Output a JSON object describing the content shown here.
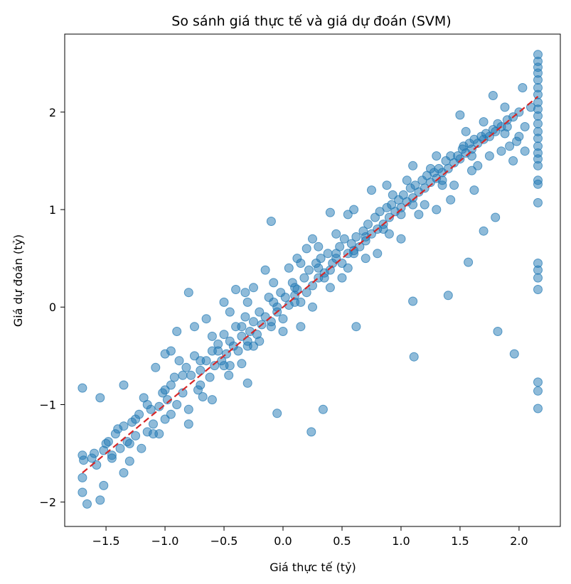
{
  "chart_data": {
    "type": "scatter",
    "title": "So sánh giá thực tế và giá dự đoán (SVM)",
    "xlabel": "Giá thực tế (tỷ)",
    "ylabel": "Giá dự đoán (tỷ)",
    "xlim": [
      -1.85,
      2.35
    ],
    "ylim": [
      -2.25,
      2.8
    ],
    "xticks": [
      -1.5,
      -1.0,
      -0.5,
      0.0,
      0.5,
      1.0,
      1.5,
      2.0
    ],
    "xtick_labels": [
      "−1.5",
      "−1.0",
      "−0.5",
      "0.0",
      "0.5",
      "1.0",
      "1.5",
      "2.0"
    ],
    "yticks": [
      -2,
      -1,
      0,
      1,
      2
    ],
    "ytick_labels": [
      "−2",
      "−1",
      "0",
      "1",
      "2"
    ],
    "grid": false,
    "point_color": "#1f77b4",
    "point_opacity": 0.5,
    "reference_line": {
      "style": "dashed",
      "color": "#d62728",
      "from": [
        -1.7,
        -1.7
      ],
      "to": [
        2.16,
        2.16
      ]
    },
    "points": [
      [
        -1.7,
        -0.83
      ],
      [
        -1.7,
        -1.52
      ],
      [
        -1.69,
        -1.57
      ],
      [
        -1.7,
        -1.75
      ],
      [
        -1.7,
        -1.9
      ],
      [
        -1.66,
        -2.02
      ],
      [
        -1.55,
        -1.98
      ],
      [
        -1.52,
        -1.83
      ],
      [
        -1.55,
        -0.93
      ],
      [
        -1.62,
        -1.55
      ],
      [
        -1.58,
        -1.62
      ],
      [
        -1.52,
        -1.47
      ],
      [
        -1.48,
        -1.38
      ],
      [
        -1.45,
        -1.52
      ],
      [
        -1.42,
        -1.3
      ],
      [
        -1.38,
        -1.45
      ],
      [
        -1.35,
        -1.22
      ],
      [
        -1.35,
        -0.8
      ],
      [
        -1.32,
        -1.38
      ],
      [
        -1.3,
        -1.58
      ],
      [
        -1.28,
        -1.18
      ],
      [
        -1.25,
        -1.32
      ],
      [
        -1.22,
        -1.1
      ],
      [
        -1.2,
        -1.45
      ],
      [
        -1.18,
        -0.93
      ],
      [
        -1.15,
        -1.28
      ],
      [
        -1.12,
        -1.05
      ],
      [
        -1.1,
        -1.2
      ],
      [
        -1.08,
        -0.62
      ],
      [
        -1.05,
        -1.02
      ],
      [
        -1.02,
        -0.88
      ],
      [
        -1.0,
        -0.48
      ],
      [
        -1.0,
        -1.15
      ],
      [
        -0.98,
        -0.95
      ],
      [
        -0.95,
        -0.8
      ],
      [
        -0.92,
        -0.72
      ],
      [
        -0.9,
        -1.0
      ],
      [
        -0.88,
        -0.55
      ],
      [
        -0.85,
        -0.88
      ],
      [
        -0.82,
        -0.62
      ],
      [
        -0.8,
        -1.05
      ],
      [
        -0.78,
        -0.7
      ],
      [
        -0.75,
        -0.5
      ],
      [
        -0.72,
        -0.85
      ],
      [
        -0.7,
        -0.65
      ],
      [
        -0.68,
        -0.92
      ],
      [
        -0.65,
        -0.55
      ],
      [
        -0.62,
        -0.72
      ],
      [
        -0.6,
        -0.45
      ],
      [
        -0.58,
        -0.6
      ],
      [
        -0.55,
        -0.38
      ],
      [
        -0.52,
        -0.55
      ],
      [
        -0.5,
        -0.28
      ],
      [
        -0.48,
        -0.48
      ],
      [
        -0.46,
        -0.7
      ],
      [
        -0.45,
        -0.35
      ],
      [
        -0.42,
        -0.4
      ],
      [
        -0.4,
        -0.2
      ],
      [
        -0.38,
        -0.45
      ],
      [
        -0.35,
        -0.3
      ],
      [
        -0.32,
        -0.1
      ],
      [
        -0.3,
        -0.35
      ],
      [
        -0.28,
        -0.25
      ],
      [
        -0.3,
        -0.78
      ],
      [
        -0.25,
        -0.15
      ],
      [
        -0.22,
        -0.28
      ],
      [
        -0.2,
        -0.05
      ],
      [
        -0.18,
        -0.18
      ],
      [
        -0.15,
        -0.1
      ],
      [
        -0.12,
        0.1
      ],
      [
        -0.1,
        -0.2
      ],
      [
        -0.08,
        0.05
      ],
      [
        -0.05,
        -0.05
      ],
      [
        -0.02,
        0.15
      ],
      [
        0.0,
        -0.12
      ],
      [
        0.02,
        0.1
      ],
      [
        0.05,
        0.02
      ],
      [
        0.08,
        0.25
      ],
      [
        0.1,
        0.05
      ],
      [
        0.12,
        0.18
      ],
      [
        0.15,
        0.05
      ],
      [
        0.18,
        0.3
      ],
      [
        0.2,
        0.15
      ],
      [
        0.22,
        0.38
      ],
      [
        0.25,
        0.22
      ],
      [
        0.28,
        0.45
      ],
      [
        0.3,
        0.3
      ],
      [
        0.32,
        0.5
      ],
      [
        0.35,
        0.35
      ],
      [
        0.38,
        0.55
      ],
      [
        0.4,
        0.38
      ],
      [
        0.42,
        0.45
      ],
      [
        0.45,
        0.5
      ],
      [
        0.48,
        0.62
      ],
      [
        0.5,
        0.45
      ],
      [
        0.52,
        0.7
      ],
      [
        0.55,
        0.55
      ],
      [
        0.58,
        0.65
      ],
      [
        0.6,
        0.58
      ],
      [
        0.62,
        0.72
      ],
      [
        0.65,
        0.62
      ],
      [
        0.68,
        0.78
      ],
      [
        0.7,
        0.68
      ],
      [
        0.72,
        0.85
      ],
      [
        0.75,
        0.75
      ],
      [
        0.78,
        0.92
      ],
      [
        0.8,
        0.8
      ],
      [
        0.82,
        0.98
      ],
      [
        0.85,
        0.85
      ],
      [
        0.88,
        1.02
      ],
      [
        0.9,
        0.92
      ],
      [
        0.92,
        1.05
      ],
      [
        0.95,
        0.98
      ],
      [
        0.98,
        1.1
      ],
      [
        1.0,
        1.02
      ],
      [
        1.02,
        1.15
      ],
      [
        1.05,
        1.08
      ],
      [
        1.08,
        1.22
      ],
      [
        1.1,
        1.12
      ],
      [
        1.12,
        1.25
      ],
      [
        1.15,
        1.18
      ],
      [
        1.18,
        1.3
      ],
      [
        1.2,
        1.22
      ],
      [
        1.22,
        1.35
      ],
      [
        1.25,
        1.28
      ],
      [
        1.28,
        1.38
      ],
      [
        1.3,
        1.32
      ],
      [
        1.32,
        1.42
      ],
      [
        1.35,
        1.38
      ],
      [
        1.38,
        1.5
      ],
      [
        1.4,
        1.42
      ],
      [
        1.42,
        1.55
      ],
      [
        1.45,
        1.48
      ],
      [
        1.48,
        1.55
      ],
      [
        1.5,
        1.52
      ],
      [
        1.52,
        1.62
      ],
      [
        1.55,
        1.58
      ],
      [
        1.58,
        1.68
      ],
      [
        1.6,
        1.62
      ],
      [
        1.62,
        1.72
      ],
      [
        1.65,
        1.68
      ],
      [
        1.68,
        1.75
      ],
      [
        1.7,
        1.72
      ],
      [
        1.72,
        1.78
      ],
      [
        1.75,
        1.75
      ],
      [
        1.78,
        1.82
      ],
      [
        1.8,
        1.8
      ],
      [
        1.82,
        1.88
      ],
      [
        1.85,
        1.85
      ],
      [
        1.88,
        1.78
      ],
      [
        1.9,
        1.92
      ],
      [
        1.92,
        1.65
      ],
      [
        1.95,
        1.95
      ],
      [
        1.98,
        1.7
      ],
      [
        2.0,
        2.0
      ],
      [
        2.05,
        1.85
      ],
      [
        2.1,
        2.05
      ],
      [
        1.78,
        2.17
      ],
      [
        1.5,
        1.97
      ],
      [
        1.53,
        1.65
      ],
      [
        1.3,
        1.55
      ],
      [
        1.1,
        1.45
      ],
      [
        0.88,
        1.25
      ],
      [
        0.75,
        1.2
      ],
      [
        0.6,
        1.0
      ],
      [
        0.4,
        0.97
      ],
      [
        0.25,
        0.7
      ],
      [
        0.2,
        0.6
      ],
      [
        0.12,
        0.5
      ],
      [
        -0.1,
        0.88
      ],
      [
        -0.08,
        0.25
      ],
      [
        -0.25,
        0.2
      ],
      [
        -0.3,
        0.05
      ],
      [
        -0.4,
        0.18
      ],
      [
        -0.5,
        0.05
      ],
      [
        -0.65,
        -0.12
      ],
      [
        -0.8,
        0.15
      ],
      [
        -0.9,
        -0.25
      ],
      [
        -0.95,
        -0.45
      ],
      [
        -0.75,
        -0.2
      ],
      [
        -0.6,
        -0.3
      ],
      [
        -0.15,
        0.38
      ],
      [
        0.05,
        0.4
      ],
      [
        0.15,
        0.45
      ],
      [
        0.55,
        0.4
      ],
      [
        0.8,
        0.55
      ],
      [
        1.0,
        0.7
      ],
      [
        1.15,
        0.95
      ],
      [
        1.3,
        1.0
      ],
      [
        1.42,
        1.1
      ],
      [
        1.62,
        1.2
      ],
      [
        1.8,
        0.92
      ],
      [
        1.7,
        0.78
      ],
      [
        1.57,
        0.46
      ],
      [
        1.4,
        0.12
      ],
      [
        1.82,
        -0.25
      ],
      [
        1.96,
        -0.48
      ],
      [
        1.11,
        -0.51
      ],
      [
        1.1,
        0.06
      ],
      [
        0.62,
        -0.2
      ],
      [
        0.34,
        -1.05
      ],
      [
        0.24,
        -1.28
      ],
      [
        -0.05,
        -1.09
      ],
      [
        0.15,
        -0.2
      ],
      [
        -0.25,
        -0.4
      ],
      [
        -1.35,
        -1.7
      ],
      [
        -1.05,
        -1.3
      ],
      [
        -0.8,
        -1.2
      ],
      [
        -0.6,
        -0.95
      ],
      [
        -0.45,
        -0.6
      ],
      [
        -0.35,
        -0.58
      ],
      [
        -0.2,
        -0.35
      ],
      [
        0.0,
        -0.25
      ],
      [
        0.25,
        0.0
      ],
      [
        0.4,
        0.2
      ],
      [
        0.5,
        0.3
      ],
      [
        0.7,
        0.5
      ],
      [
        0.9,
        0.75
      ],
      [
        1.2,
        1.05
      ],
      [
        1.45,
        1.25
      ],
      [
        1.65,
        1.45
      ],
      [
        1.85,
        1.6
      ],
      [
        2.0,
        1.75
      ],
      [
        2.16,
        2.59
      ],
      [
        2.16,
        2.52
      ],
      [
        2.16,
        2.46
      ],
      [
        2.16,
        2.4
      ],
      [
        2.16,
        2.33
      ],
      [
        2.16,
        2.25
      ],
      [
        2.16,
        2.18
      ],
      [
        2.16,
        2.1
      ],
      [
        2.16,
        2.03
      ],
      [
        2.16,
        1.96
      ],
      [
        2.16,
        1.88
      ],
      [
        2.16,
        1.8
      ],
      [
        2.16,
        1.73
      ],
      [
        2.16,
        1.65
      ],
      [
        2.16,
        1.58
      ],
      [
        2.16,
        1.52
      ],
      [
        2.16,
        1.45
      ],
      [
        2.16,
        1.3
      ],
      [
        2.16,
        1.26
      ],
      [
        2.16,
        1.07
      ],
      [
        2.16,
        0.45
      ],
      [
        2.16,
        0.38
      ],
      [
        2.16,
        0.3
      ],
      [
        2.16,
        0.18
      ],
      [
        2.16,
        -0.77
      ],
      [
        2.16,
        -0.86
      ],
      [
        2.16,
        -1.04
      ],
      [
        2.05,
        1.6
      ],
      [
        1.95,
        1.5
      ],
      [
        1.75,
        1.55
      ],
      [
        1.6,
        1.4
      ],
      [
        1.35,
        1.25
      ],
      [
        1.0,
        0.95
      ],
      [
        0.7,
        0.72
      ],
      [
        0.45,
        0.55
      ],
      [
        0.3,
        0.4
      ],
      [
        0.1,
        0.2
      ],
      [
        -0.05,
        0.0
      ],
      [
        -0.35,
        -0.2
      ],
      [
        -0.55,
        -0.45
      ],
      [
        -0.7,
        -0.55
      ],
      [
        -0.85,
        -0.7
      ],
      [
        -1.0,
        -0.85
      ],
      [
        -1.15,
        -1.0
      ],
      [
        -1.25,
        -1.15
      ],
      [
        -1.4,
        -1.25
      ],
      [
        -1.5,
        -1.4
      ],
      [
        -1.6,
        -1.5
      ],
      [
        -1.45,
        -1.55
      ],
      [
        -1.3,
        -1.4
      ],
      [
        -1.1,
        -1.3
      ],
      [
        -0.95,
        -1.1
      ],
      [
        -0.7,
        -0.8
      ],
      [
        -0.5,
        -0.6
      ],
      [
        -0.3,
        -0.4
      ],
      [
        -0.1,
        -0.15
      ],
      [
        0.1,
        0.12
      ],
      [
        0.35,
        0.3
      ],
      [
        0.6,
        0.55
      ],
      [
        0.85,
        0.8
      ],
      [
        1.1,
        1.05
      ],
      [
        1.35,
        1.3
      ],
      [
        1.6,
        1.55
      ],
      [
        1.9,
        1.85
      ],
      [
        -0.45,
        -0.05
      ],
      [
        -0.32,
        0.15
      ],
      [
        0.3,
        0.62
      ],
      [
        0.45,
        0.75
      ],
      [
        0.55,
        0.95
      ],
      [
        0.93,
        1.15
      ],
      [
        1.25,
        1.42
      ],
      [
        1.05,
        1.3
      ],
      [
        1.55,
        1.8
      ],
      [
        1.7,
        1.9
      ],
      [
        2.03,
        2.25
      ],
      [
        1.88,
        2.05
      ]
    ]
  }
}
